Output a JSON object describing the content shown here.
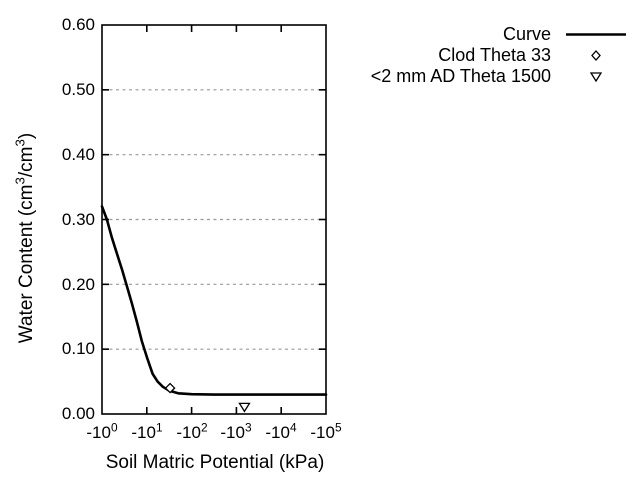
{
  "figure": {
    "background": "#ffffff",
    "frame_color": "#000000",
    "grid_color": "#999999",
    "curve_color": "#000000"
  },
  "chart_data": {
    "type": "line",
    "title": "",
    "xlabel": "Soil Matric Potential (kPa)",
    "ylabel_parts": {
      "p1": "Water Content (cm",
      "s1": "3",
      "p2": "/cm",
      "s2": "3",
      "p3": ")"
    },
    "x_axis": {
      "scale": "log10 of negative kPa",
      "decade_range": [
        0,
        5
      ],
      "ticks": [
        {
          "base": "-10",
          "exp": "0"
        },
        {
          "base": "-10",
          "exp": "1"
        },
        {
          "base": "-10",
          "exp": "2"
        },
        {
          "base": "-10",
          "exp": "3"
        },
        {
          "base": "-10",
          "exp": "4"
        },
        {
          "base": "-10",
          "exp": "5"
        }
      ]
    },
    "y_axis": {
      "range": [
        0.0,
        0.6
      ],
      "ticks": [
        "0.00",
        "0.10",
        "0.20",
        "0.30",
        "0.40",
        "0.50",
        "0.60"
      ],
      "grid_dashed_at": [
        0.1,
        0.2,
        0.3,
        0.4,
        0.5
      ]
    },
    "series": [
      {
        "name": "Curve",
        "type": "line",
        "points_log10_theta": [
          [
            0.0,
            0.32
          ],
          [
            0.11,
            0.3
          ],
          [
            0.22,
            0.272
          ],
          [
            0.33,
            0.248
          ],
          [
            0.45,
            0.222
          ],
          [
            0.56,
            0.196
          ],
          [
            0.67,
            0.17
          ],
          [
            0.78,
            0.142
          ],
          [
            0.89,
            0.112
          ],
          [
            1.0,
            0.088
          ],
          [
            1.13,
            0.062
          ],
          [
            1.24,
            0.05
          ],
          [
            1.36,
            0.042
          ],
          [
            1.5,
            0.036
          ],
          [
            1.7,
            0.032
          ],
          [
            2.0,
            0.0305
          ],
          [
            2.5,
            0.03
          ],
          [
            3.0,
            0.03
          ],
          [
            4.0,
            0.03
          ],
          [
            5.0,
            0.03
          ]
        ]
      },
      {
        "name": "Clod Theta 33",
        "type": "scatter",
        "marker": "diamond-open",
        "points": [
          {
            "x_kpa": -33,
            "log10": 1.52,
            "theta": 0.04
          }
        ]
      },
      {
        "name": "<2 mm AD Theta 1500",
        "type": "scatter",
        "marker": "triangle-down-open",
        "points": [
          {
            "x_kpa": -1500,
            "log10": 3.18,
            "theta": 0.011
          }
        ]
      }
    ],
    "legend": {
      "position": "top-right-outside",
      "entries": [
        {
          "label": "Curve",
          "sample": "line"
        },
        {
          "label": "Clod Theta 33",
          "sample": "diamond-open"
        },
        {
          "label": "<2 mm AD Theta 1500",
          "sample": "triangle-down-open"
        }
      ]
    }
  }
}
